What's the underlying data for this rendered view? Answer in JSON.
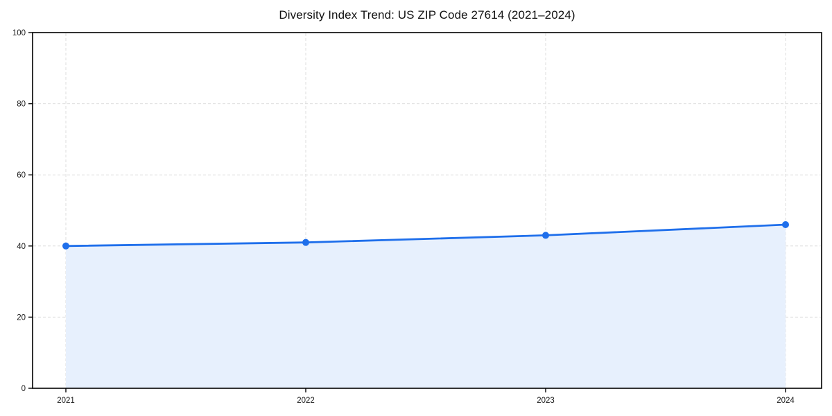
{
  "chart_data": {
    "type": "area",
    "title": "Diversity Index Trend: US ZIP Code 27614 (2021–2024)",
    "categories": [
      "2021",
      "2022",
      "2023",
      "2024"
    ],
    "series": [
      {
        "name": "Diversity Index",
        "values": [
          40,
          41,
          43,
          46
        ]
      }
    ],
    "xlabel": "",
    "ylabel": "",
    "ylim": [
      0,
      100
    ],
    "yticks": [
      0,
      20,
      40,
      60,
      80,
      100
    ],
    "grid": true,
    "grid_style": "dashed",
    "legend": false,
    "colors": {
      "line": "#1f6feb",
      "marker": "#1f6feb",
      "fill": "#e7f0fd",
      "grid": "#dcdcdc",
      "axis": "#000000",
      "tick_text": "#1a1a1a"
    }
  }
}
